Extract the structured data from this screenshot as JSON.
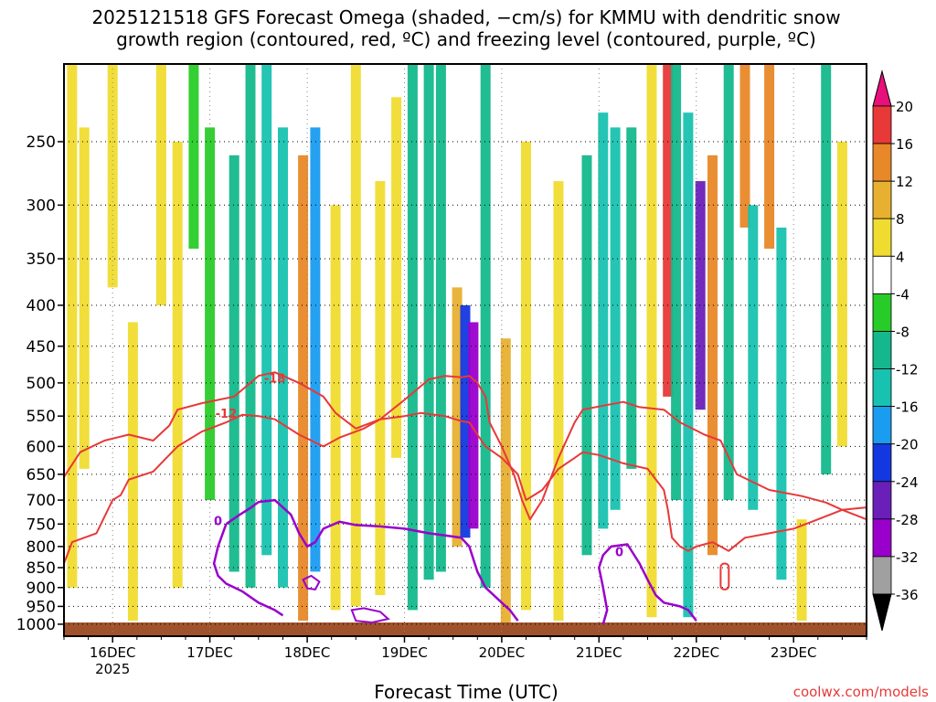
{
  "chart_data": {
    "type": "heatmap",
    "title": "2025121518 GFS Forecast Omega (shaded, −cm/s) for KMMU with dendritic snow growth region (contoured, red, ºC) and freezing level (contoured, purple, ºC)",
    "title_lines": [
      "2025121518 GFS Forecast Omega (shaded, −cm/s) for KMMU with dendritic snow",
      "growth region (contoured, red, ºC) and freezing level (contoured, purple, ºC)"
    ],
    "xlabel": "Forecast Time (UTC)",
    "ylabel": "",
    "credit": "coolwx.com/models",
    "x_unit": "hours after 16DEC 00UTC",
    "xlim": [
      -12,
      186
    ],
    "x_ticks": [
      {
        "label": "16DEC",
        "hour": 0
      },
      {
        "label": "17DEC",
        "hour": 24
      },
      {
        "label": "18DEC",
        "hour": 48
      },
      {
        "label": "19DEC",
        "hour": 72
      },
      {
        "label": "20DEC",
        "hour": 96
      },
      {
        "label": "21DEC",
        "hour": 120
      },
      {
        "label": "22DEC",
        "hour": 144
      },
      {
        "label": "23DEC",
        "hour": 168
      }
    ],
    "x_sublabel": "2025",
    "y_unit": "hPa",
    "ylim": [
      1035,
      200
    ],
    "y_ticks": [
      250,
      300,
      350,
      400,
      450,
      500,
      550,
      600,
      650,
      700,
      750,
      800,
      850,
      900,
      950,
      1000
    ],
    "colorbar": {
      "levels": [
        -36,
        -32,
        -28,
        -24,
        -20,
        -16,
        -12,
        -8,
        -4,
        4,
        8,
        12,
        16,
        20
      ],
      "labels": [
        "20",
        "16",
        "12",
        "8",
        "4",
        "-4",
        "-8",
        "-12",
        "-16",
        "-20",
        "-24",
        "-28",
        "-32",
        "-36"
      ],
      "colors": [
        "#000000",
        "#a0a0a0",
        "#9900cc",
        "#6a20b8",
        "#1438e0",
        "#1a9cf0",
        "#18c2b0",
        "#14b88c",
        "#28cc28",
        "#ffffff",
        "#f0dc30",
        "#e8b030",
        "#e88828",
        "#e83838",
        "#e8107a"
      ]
    },
    "omega_bands": [
      {
        "hour": -10,
        "p_top": 200,
        "p_bottom": 900,
        "value": 5
      },
      {
        "hour": -7,
        "p_top": 240,
        "p_bottom": 640,
        "value": 7
      },
      {
        "hour": 0,
        "p_top": 200,
        "p_bottom": 380,
        "value": 6
      },
      {
        "hour": 5,
        "p_top": 420,
        "p_bottom": 990,
        "value": 5
      },
      {
        "hour": 12,
        "p_top": 200,
        "p_bottom": 400,
        "value": 6
      },
      {
        "hour": 16,
        "p_top": 250,
        "p_bottom": 900,
        "value": 6
      },
      {
        "hour": 20,
        "p_top": 200,
        "p_bottom": 340,
        "value": -7
      },
      {
        "hour": 24,
        "p_top": 240,
        "p_bottom": 700,
        "value": -6
      },
      {
        "hour": 30,
        "p_top": 260,
        "p_bottom": 860,
        "value": -9
      },
      {
        "hour": 34,
        "p_top": 200,
        "p_bottom": 900,
        "value": -10
      },
      {
        "hour": 38,
        "p_top": 200,
        "p_bottom": 820,
        "value": -13
      },
      {
        "hour": 42,
        "p_top": 240,
        "p_bottom": 900,
        "value": -15
      },
      {
        "hour": 47,
        "p_top": 260,
        "p_bottom": 990,
        "value": 14
      },
      {
        "hour": 50,
        "p_top": 240,
        "p_bottom": 860,
        "value": -17
      },
      {
        "hour": 55,
        "p_top": 300,
        "p_bottom": 960,
        "value": 6
      },
      {
        "hour": 60,
        "p_top": 200,
        "p_bottom": 950,
        "value": 5
      },
      {
        "hour": 66,
        "p_top": 280,
        "p_bottom": 920,
        "value": 5
      },
      {
        "hour": 70,
        "p_top": 220,
        "p_bottom": 620,
        "value": 6
      },
      {
        "hour": 74,
        "p_top": 200,
        "p_bottom": 960,
        "value": -9
      },
      {
        "hour": 78,
        "p_top": 200,
        "p_bottom": 880,
        "value": -11
      },
      {
        "hour": 81,
        "p_top": 200,
        "p_bottom": 860,
        "value": -10
      },
      {
        "hour": 85,
        "p_top": 380,
        "p_bottom": 800,
        "value": 10
      },
      {
        "hour": 87,
        "p_top": 400,
        "p_bottom": 780,
        "value": -20
      },
      {
        "hour": 89,
        "p_top": 420,
        "p_bottom": 760,
        "value": -28
      },
      {
        "hour": 92,
        "p_top": 200,
        "p_bottom": 900,
        "value": -10
      },
      {
        "hour": 97,
        "p_top": 440,
        "p_bottom": 1000,
        "value": 10
      },
      {
        "hour": 102,
        "p_top": 250,
        "p_bottom": 960,
        "value": 6
      },
      {
        "hour": 110,
        "p_top": 280,
        "p_bottom": 990,
        "value": 5
      },
      {
        "hour": 117,
        "p_top": 260,
        "p_bottom": 820,
        "value": -11
      },
      {
        "hour": 121,
        "p_top": 230,
        "p_bottom": 760,
        "value": -15
      },
      {
        "hour": 124,
        "p_top": 240,
        "p_bottom": 720,
        "value": -13
      },
      {
        "hour": 128,
        "p_top": 240,
        "p_bottom": 640,
        "value": -10
      },
      {
        "hour": 133,
        "p_top": 200,
        "p_bottom": 980,
        "value": 8
      },
      {
        "hour": 137,
        "p_top": 200,
        "p_bottom": 520,
        "value": 20
      },
      {
        "hour": 139,
        "p_top": 200,
        "p_bottom": 700,
        "value": -9
      },
      {
        "hour": 142,
        "p_top": 230,
        "p_bottom": 980,
        "value": -15
      },
      {
        "hour": 145,
        "p_top": 280,
        "p_bottom": 540,
        "value": -24
      },
      {
        "hour": 148,
        "p_top": 260,
        "p_bottom": 820,
        "value": 16
      },
      {
        "hour": 152,
        "p_top": 200,
        "p_bottom": 700,
        "value": -10
      },
      {
        "hour": 156,
        "p_top": 200,
        "p_bottom": 320,
        "value": 14
      },
      {
        "hour": 158,
        "p_top": 300,
        "p_bottom": 720,
        "value": -15
      },
      {
        "hour": 162,
        "p_top": 200,
        "p_bottom": 340,
        "value": 16
      },
      {
        "hour": 165,
        "p_top": 320,
        "p_bottom": 880,
        "value": -12
      },
      {
        "hour": 170,
        "p_top": 740,
        "p_bottom": 990,
        "value": 8
      },
      {
        "hour": 176,
        "p_top": 200,
        "p_bottom": 650,
        "value": -11
      },
      {
        "hour": 180,
        "p_top": 250,
        "p_bottom": 600,
        "value": 6
      }
    ],
    "dgz_contours": [
      {
        "label": "-18",
        "label_at": {
          "hour": 40,
          "p": 493
        },
        "points": [
          [
            -12,
            655
          ],
          [
            -8,
            610
          ],
          [
            -2,
            590
          ],
          [
            4,
            580
          ],
          [
            10,
            590
          ],
          [
            14,
            565
          ],
          [
            16,
            540
          ],
          [
            22,
            530
          ],
          [
            30,
            520
          ],
          [
            36,
            490
          ],
          [
            40,
            485
          ],
          [
            46,
            500
          ],
          [
            52,
            520
          ],
          [
            55,
            545
          ],
          [
            60,
            570
          ],
          [
            66,
            555
          ],
          [
            72,
            525
          ],
          [
            78,
            495
          ],
          [
            82,
            490
          ],
          [
            86,
            492
          ],
          [
            88,
            490
          ],
          [
            90,
            500
          ],
          [
            92,
            520
          ],
          [
            93,
            560
          ],
          [
            96,
            600
          ],
          [
            99,
            650
          ],
          [
            101,
            700
          ],
          [
            103,
            740
          ],
          [
            106,
            700
          ],
          [
            110,
            620
          ],
          [
            114,
            560
          ],
          [
            116,
            540
          ],
          [
            120,
            535
          ],
          [
            126,
            528
          ],
          [
            130,
            536
          ],
          [
            136,
            540
          ],
          [
            140,
            560
          ],
          [
            146,
            580
          ],
          [
            150,
            590
          ],
          [
            154,
            650
          ],
          [
            162,
            680
          ],
          [
            170,
            692
          ],
          [
            176,
            705
          ],
          [
            180,
            720
          ],
          [
            186,
            740
          ]
        ]
      },
      {
        "label": "-12",
        "label_at": {
          "hour": 28,
          "p": 545
        },
        "points": [
          [
            -12,
            840
          ],
          [
            -10,
            790
          ],
          [
            -4,
            770
          ],
          [
            0,
            700
          ],
          [
            2,
            690
          ],
          [
            4,
            660
          ],
          [
            10,
            645
          ],
          [
            16,
            600
          ],
          [
            22,
            575
          ],
          [
            28,
            560
          ],
          [
            32,
            548
          ],
          [
            36,
            550
          ],
          [
            40,
            555
          ],
          [
            46,
            580
          ],
          [
            52,
            600
          ],
          [
            56,
            585
          ],
          [
            62,
            570
          ],
          [
            66,
            555
          ],
          [
            72,
            550
          ],
          [
            76,
            545
          ],
          [
            82,
            550
          ],
          [
            86,
            558
          ],
          [
            88,
            560
          ],
          [
            90,
            580
          ],
          [
            92,
            600
          ],
          [
            96,
            620
          ],
          [
            100,
            650
          ],
          [
            102,
            700
          ],
          [
            106,
            680
          ],
          [
            110,
            640
          ],
          [
            114,
            620
          ],
          [
            116,
            610
          ],
          [
            120,
            615
          ],
          [
            126,
            630
          ],
          [
            132,
            640
          ],
          [
            136,
            680
          ],
          [
            137,
            720
          ],
          [
            138,
            780
          ],
          [
            140,
            800
          ],
          [
            142,
            810
          ],
          [
            144,
            800
          ],
          [
            148,
            790
          ],
          [
            150,
            800
          ],
          [
            152,
            810
          ],
          [
            156,
            780
          ],
          [
            162,
            770
          ],
          [
            168,
            760
          ],
          [
            174,
            740
          ],
          [
            180,
            720
          ],
          [
            186,
            715
          ]
        ]
      }
    ],
    "dgz_small_loop": {
      "hour_min": 150,
      "hour_max": 152,
      "p_top": 840,
      "p_bottom": 905
    },
    "freezing_contours": [
      {
        "label": "0",
        "label_at": {
          "hour": 26,
          "p": 742
        },
        "points": [
          [
            28,
            750
          ],
          [
            31,
            732
          ],
          [
            34,
            716
          ],
          [
            36,
            704
          ],
          [
            40,
            700
          ],
          [
            42,
            715
          ],
          [
            44,
            730
          ],
          [
            45,
            750
          ],
          [
            46,
            770
          ],
          [
            48,
            800
          ],
          [
            50,
            790
          ],
          [
            52,
            760
          ],
          [
            56,
            745
          ],
          [
            60,
            752
          ],
          [
            66,
            755
          ],
          [
            72,
            760
          ],
          [
            78,
            770
          ],
          [
            82,
            775
          ],
          [
            86,
            780
          ],
          [
            88,
            800
          ],
          [
            90,
            860
          ],
          [
            92,
            900
          ],
          [
            96,
            940
          ],
          [
            98,
            960
          ],
          [
            100,
            990
          ]
        ]
      },
      {
        "label": "",
        "label_at": null,
        "points": [
          [
            28,
            750
          ],
          [
            26,
            800
          ],
          [
            25,
            840
          ],
          [
            26,
            870
          ],
          [
            28,
            890
          ],
          [
            32,
            910
          ],
          [
            36,
            940
          ],
          [
            40,
            960
          ],
          [
            42,
            975
          ]
        ]
      },
      {
        "label": "0",
        "label_at": {
          "hour": 125,
          "p": 812
        },
        "points": [
          [
            121,
            1000
          ],
          [
            122,
            960
          ],
          [
            121,
            900
          ],
          [
            120,
            850
          ],
          [
            121,
            820
          ],
          [
            123,
            800
          ],
          [
            127,
            795
          ],
          [
            130,
            840
          ],
          [
            132,
            880
          ],
          [
            134,
            920
          ],
          [
            136,
            940
          ],
          [
            140,
            950
          ],
          [
            142,
            960
          ],
          [
            144,
            990
          ]
        ]
      }
    ],
    "misc_purple_loops": [
      {
        "points": [
          [
            59,
            960
          ],
          [
            62,
            955
          ],
          [
            66,
            965
          ],
          [
            68,
            985
          ],
          [
            64,
            995
          ],
          [
            60,
            990
          ]
        ]
      },
      {
        "points": [
          [
            47,
            880
          ],
          [
            49,
            870
          ],
          [
            51,
            885
          ],
          [
            50,
            905
          ],
          [
            48,
            902
          ]
        ]
      }
    ],
    "terrain_fill": {
      "color": "#a0522d",
      "p_top_approx": 995
    }
  }
}
